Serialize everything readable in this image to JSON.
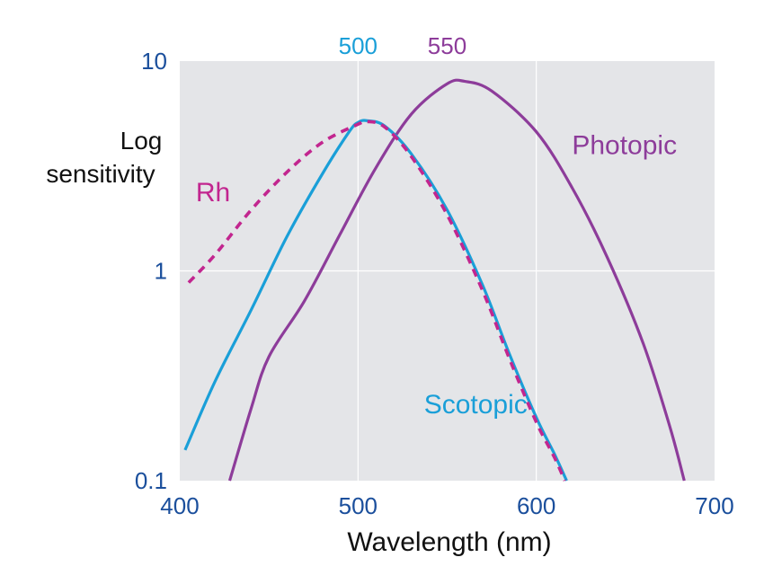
{
  "chart_data": {
    "type": "line",
    "title": "",
    "xlabel": "Wavelength (nm)",
    "ylabel_lines": [
      "Log",
      "sensitivity"
    ],
    "y_scale": "log",
    "xlim": [
      400,
      700
    ],
    "ylim": [
      0.1,
      10
    ],
    "x_ticks": [
      400,
      500,
      600,
      700
    ],
    "x_tick_labels": [
      "400",
      "500",
      "600",
      "700"
    ],
    "y_ticks": [
      0.1,
      1,
      10
    ],
    "y_tick_labels": [
      "0.1",
      "1",
      "10"
    ],
    "grid": true,
    "peak_markers": [
      {
        "label": "500",
        "x": 500,
        "color": "#1a9fd8"
      },
      {
        "label": "550",
        "x": 550,
        "color": "#8d3c9a"
      }
    ],
    "series": [
      {
        "name": "Scotopic",
        "color": "#1a9fd8",
        "style": "solid",
        "label_x": 537,
        "label_y": 0.21,
        "points": [
          [
            403,
            0.14
          ],
          [
            420,
            0.3
          ],
          [
            440,
            0.65
          ],
          [
            460,
            1.45
          ],
          [
            480,
            2.9
          ],
          [
            495,
            4.6
          ],
          [
            500,
            5.1
          ],
          [
            505,
            5.2
          ],
          [
            515,
            4.9
          ],
          [
            530,
            3.6
          ],
          [
            550,
            1.95
          ],
          [
            570,
            0.85
          ],
          [
            585,
            0.4
          ],
          [
            600,
            0.2
          ],
          [
            610,
            0.135
          ],
          [
            617,
            0.1
          ]
        ]
      },
      {
        "name": "Photopic",
        "color": "#8d3c9a",
        "style": "solid",
        "label_x": 620,
        "label_y": 3.6,
        "points": [
          [
            428,
            0.1
          ],
          [
            440,
            0.22
          ],
          [
            450,
            0.39
          ],
          [
            470,
            0.72
          ],
          [
            490,
            1.5
          ],
          [
            510,
            3.1
          ],
          [
            530,
            5.6
          ],
          [
            550,
            7.8
          ],
          [
            560,
            8.0
          ],
          [
            575,
            7.2
          ],
          [
            600,
            4.6
          ],
          [
            620,
            2.5
          ],
          [
            640,
            1.15
          ],
          [
            660,
            0.45
          ],
          [
            675,
            0.18
          ],
          [
            683,
            0.1
          ]
        ]
      },
      {
        "name": "Rh",
        "color": "#c2268f",
        "style": "dashed",
        "label_x": 409,
        "label_y": 2.15,
        "points": [
          [
            405,
            0.88
          ],
          [
            420,
            1.2
          ],
          [
            440,
            1.95
          ],
          [
            460,
            2.95
          ],
          [
            480,
            4.1
          ],
          [
            500,
            5.0
          ],
          [
            505,
            5.15
          ],
          [
            515,
            4.85
          ],
          [
            530,
            3.5
          ],
          [
            550,
            1.85
          ],
          [
            570,
            0.8
          ],
          [
            585,
            0.38
          ],
          [
            600,
            0.19
          ],
          [
            610,
            0.13
          ],
          [
            616,
            0.1
          ]
        ]
      }
    ]
  }
}
